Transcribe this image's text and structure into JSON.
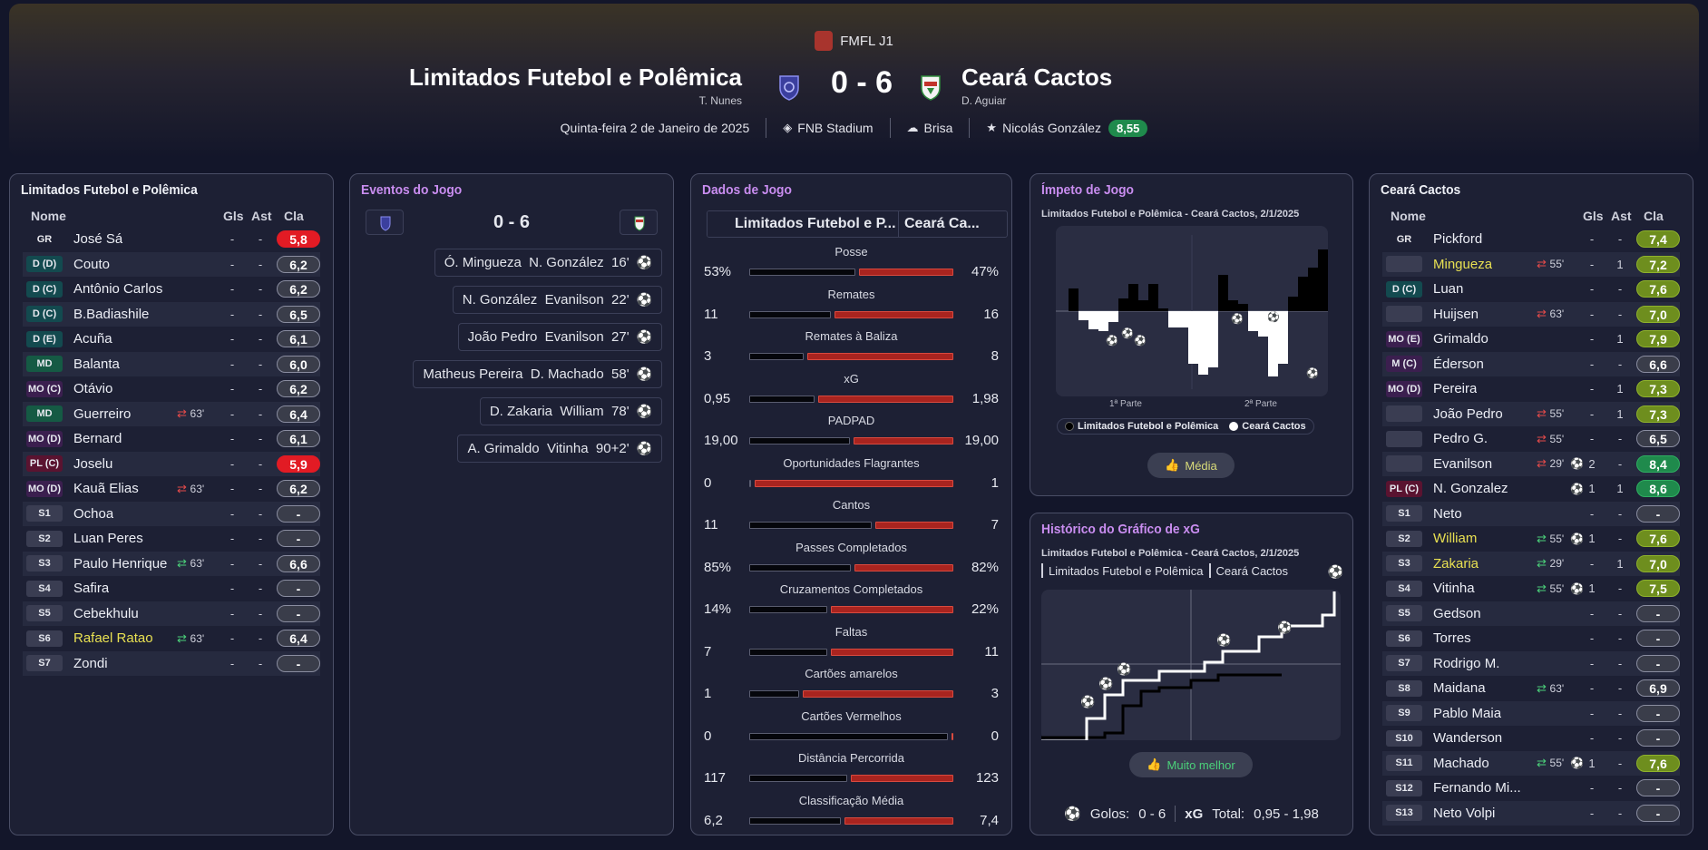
{
  "header": {
    "competition": "FMFL J1",
    "home_team": "Limitados Futebol e Polêmica",
    "home_coach": "T. Nunes",
    "away_team": "Ceará Cactos",
    "away_coach": "D. Aguiar",
    "score": "0 - 6",
    "date": "Quinta-feira 2 de Janeiro de 2025",
    "stadium": "FNB Stadium",
    "weather": "Brisa",
    "potm": "Nicolás González",
    "potm_rating": "8,55"
  },
  "home_panel": {
    "title": "Limitados Futebol e Polêmica",
    "columns": {
      "name": "Nome",
      "goals": "Gls",
      "assists": "Ast",
      "rating": "Cla"
    },
    "players": [
      {
        "pos": "GR",
        "name": "José Sá",
        "sub": "",
        "gls": "-",
        "ast": "-",
        "rating": "5,8",
        "rc": "red"
      },
      {
        "pos": "D (D)",
        "name": "Couto",
        "sub": "",
        "gls": "-",
        "ast": "-",
        "rating": "6,2",
        "rc": ""
      },
      {
        "pos": "D (C)",
        "name": "Antônio Carlos",
        "sub": "",
        "gls": "-",
        "ast": "-",
        "rating": "6,2",
        "rc": ""
      },
      {
        "pos": "D (C)",
        "name": "B.Badiashile",
        "sub": "",
        "gls": "-",
        "ast": "-",
        "rating": "6,5",
        "rc": ""
      },
      {
        "pos": "D (E)",
        "name": "Acuña",
        "sub": "",
        "gls": "-",
        "ast": "-",
        "rating": "6,1",
        "rc": ""
      },
      {
        "pos": "MD",
        "name": "Balanta",
        "sub": "",
        "gls": "-",
        "ast": "-",
        "rating": "6,0",
        "rc": ""
      },
      {
        "pos": "MO (C)",
        "name": "Otávio",
        "sub": "",
        "gls": "-",
        "ast": "-",
        "rating": "6,2",
        "rc": ""
      },
      {
        "pos": "MD",
        "name": "Guerreiro",
        "sub": "63'",
        "subdir": "out",
        "gls": "-",
        "ast": "-",
        "rating": "6,4",
        "rc": ""
      },
      {
        "pos": "MO (D)",
        "name": "Bernard",
        "sub": "",
        "gls": "-",
        "ast": "-",
        "rating": "6,1",
        "rc": ""
      },
      {
        "pos": "PL (C)",
        "name": "Joselu",
        "sub": "",
        "gls": "-",
        "ast": "-",
        "rating": "5,9",
        "rc": "red"
      },
      {
        "pos": "MO (D)",
        "name": "Kauã Elias",
        "sub": "63'",
        "subdir": "out",
        "gls": "-",
        "ast": "-",
        "rating": "6,2",
        "rc": ""
      },
      {
        "pos": "S1",
        "name": "Ochoa",
        "sub": "",
        "gls": "-",
        "ast": "-",
        "rating": "-",
        "rc": ""
      },
      {
        "pos": "S2",
        "name": "Luan Peres",
        "sub": "",
        "gls": "-",
        "ast": "-",
        "rating": "-",
        "rc": ""
      },
      {
        "pos": "S3",
        "name": "Paulo Henrique",
        "sub": "63'",
        "subdir": "in",
        "gls": "-",
        "ast": "-",
        "rating": "6,6",
        "rc": ""
      },
      {
        "pos": "S4",
        "name": "Safira",
        "sub": "",
        "gls": "-",
        "ast": "-",
        "rating": "-",
        "rc": ""
      },
      {
        "pos": "S5",
        "name": "Cebekhulu",
        "sub": "",
        "gls": "-",
        "ast": "-",
        "rating": "-",
        "rc": ""
      },
      {
        "pos": "S6",
        "name": "Rafael Ratao",
        "hl": true,
        "sub": "63'",
        "subdir": "in",
        "gls": "-",
        "ast": "-",
        "rating": "6,4",
        "rc": ""
      },
      {
        "pos": "S7",
        "name": "Zondi",
        "sub": "",
        "gls": "-",
        "ast": "-",
        "rating": "-",
        "rc": ""
      }
    ]
  },
  "events_panel": {
    "title": "Eventos do Jogo",
    "score": "0 - 6",
    "events": [
      {
        "text": "Ó. Mingueza  N. González  16'"
      },
      {
        "text": "N. González  Evanilson  22'"
      },
      {
        "text": "João Pedro  Evanilson  27'"
      },
      {
        "text": "Matheus Pereira  D. Machado  58'"
      },
      {
        "text": "D. Zakaria  William  78'"
      },
      {
        "text": "A. Grimaldo  Vitinha  90+2'"
      }
    ]
  },
  "stats_panel": {
    "title": "Dados de Jogo",
    "home_tab": "Limitados Futebol e P...",
    "away_tab": "Ceará Ca...",
    "stats": [
      {
        "label": "Posse",
        "home": "53%",
        "away": "47%",
        "hn": 53,
        "an": 47
      },
      {
        "label": "Remates",
        "home": "11",
        "away": "16",
        "hn": 11,
        "an": 16
      },
      {
        "label": "Remates à Baliza",
        "home": "3",
        "away": "8",
        "hn": 3,
        "an": 8
      },
      {
        "label": "xG",
        "home": "0,95",
        "away": "1,98",
        "hn": 0.95,
        "an": 1.98
      },
      {
        "label": "PADPAD",
        "home": "19,00",
        "away": "19,00",
        "hn": 19,
        "an": 19
      },
      {
        "label": "Oportunidades Flagrantes",
        "home": "0",
        "away": "1",
        "hn": 0,
        "an": 1
      },
      {
        "label": "Cantos",
        "home": "11",
        "away": "7",
        "hn": 11,
        "an": 7
      },
      {
        "label": "Passes Completados",
        "home": "85%",
        "away": "82%",
        "hn": 85,
        "an": 82
      },
      {
        "label": "Cruzamentos Completados",
        "home": "14%",
        "away": "22%",
        "hn": 14,
        "an": 22
      },
      {
        "label": "Faltas",
        "home": "7",
        "away": "11",
        "hn": 7,
        "an": 11
      },
      {
        "label": "Cartões amarelos",
        "home": "1",
        "away": "3",
        "hn": 1,
        "an": 3
      },
      {
        "label": "Cartões Vermelhos",
        "home": "0",
        "away": "0",
        "hn": 0,
        "an": 0
      },
      {
        "label": "Distância Percorrida",
        "home": "117",
        "away": "123",
        "hn": 117,
        "an": 123
      },
      {
        "label": "Classificação Média",
        "home": "6,2",
        "away": "7,4",
        "hn": 6.2,
        "an": 7.4
      }
    ]
  },
  "momentum_panel": {
    "title": "Ímpeto de Jogo",
    "subtitle": "Limitados Futebol e Polêmica - Ceará Cactos, 2/1/2025",
    "first_half": "1ª Parte",
    "second_half": "2ª Parte",
    "legend_home": "Limitados Futebol e Polêmica",
    "legend_away": "Ceará Cactos",
    "button": "Média",
    "goal_badge": "1"
  },
  "xg_panel": {
    "title": "Histórico do Gráfico de xG",
    "subtitle": "Limitados Futebol e Polêmica - Ceará Cactos, 2/1/2025",
    "tab_home": "Limitados Futebol e Polêmica",
    "tab_away": "Ceará Cactos",
    "button": "Muito melhor",
    "goals_label": "Golos:",
    "goals_value": "0 - 6",
    "xg_label": "xG",
    "total_label": "Total:",
    "total_value": "0,95  - 1,98"
  },
  "away_panel": {
    "title": "Ceará Cactos",
    "columns": {
      "name": "Nome",
      "goals": "Gls",
      "assists": "Ast",
      "rating": "Cla"
    },
    "players": [
      {
        "pos": "GR",
        "name": "Pickford",
        "sub": "",
        "gls": "-",
        "ast": "-",
        "rating": "7,4",
        "rc": "lime"
      },
      {
        "pos": "",
        "name": "Mingueza",
        "hl": true,
        "sub": "55'",
        "subdir": "out",
        "gls": "-",
        "ast": "1",
        "rating": "7,2",
        "rc": "lime"
      },
      {
        "pos": "D (C)",
        "name": "Luan",
        "sub": "",
        "gls": "-",
        "ast": "-",
        "rating": "7,6",
        "rc": "lime"
      },
      {
        "pos": "",
        "name": "Huijsen",
        "sub": "63'",
        "subdir": "out",
        "gls": "-",
        "ast": "-",
        "rating": "7,0",
        "rc": "lime"
      },
      {
        "pos": "MO (E)",
        "name": "Grimaldo",
        "sub": "",
        "gls": "-",
        "ast": "1",
        "rating": "7,9",
        "rc": "lime"
      },
      {
        "pos": "M (C)",
        "name": "Éderson",
        "sub": "",
        "gls": "-",
        "ast": "-",
        "rating": "6,6",
        "rc": ""
      },
      {
        "pos": "MO (D)",
        "name": "Pereira",
        "sub": "",
        "gls": "-",
        "ast": "1",
        "rating": "7,3",
        "rc": "lime"
      },
      {
        "pos": "",
        "name": "João Pedro",
        "sub": "55'",
        "subdir": "out",
        "gls": "-",
        "ast": "1",
        "rating": "7,3",
        "rc": "lime"
      },
      {
        "pos": "",
        "name": "Pedro G.",
        "sub": "55'",
        "subdir": "out",
        "gls": "-",
        "ast": "-",
        "rating": "6,5",
        "rc": ""
      },
      {
        "pos": "",
        "name": "Evanilson",
        "sub": "29'",
        "subdir": "out",
        "gls": "2",
        "goal": true,
        "ast": "-",
        "rating": "8,4",
        "rc": "green"
      },
      {
        "pos": "PL (C)",
        "name": "N. Gonzalez",
        "sub": "",
        "gls": "1",
        "goal": true,
        "ast": "1",
        "rating": "8,6",
        "rc": "green"
      },
      {
        "pos": "S1",
        "name": "Neto",
        "sub": "",
        "gls": "-",
        "ast": "-",
        "rating": "-",
        "rc": ""
      },
      {
        "pos": "S2",
        "name": "William",
        "hl": true,
        "sub": "55'",
        "subdir": "in",
        "gls": "1",
        "goal": true,
        "ast": "-",
        "rating": "7,6",
        "rc": "lime"
      },
      {
        "pos": "S3",
        "name": "Zakaria",
        "hl": true,
        "sub": "29'",
        "subdir": "in",
        "gls": "-",
        "ast": "1",
        "rating": "7,0",
        "rc": "lime"
      },
      {
        "pos": "S4",
        "name": "Vitinha",
        "sub": "55'",
        "subdir": "in",
        "gls": "1",
        "goal": true,
        "ast": "-",
        "rating": "7,5",
        "rc": "lime"
      },
      {
        "pos": "S5",
        "name": "Gedson",
        "sub": "",
        "gls": "-",
        "ast": "-",
        "rating": "-",
        "rc": ""
      },
      {
        "pos": "S6",
        "name": "Torres",
        "sub": "",
        "gls": "-",
        "ast": "-",
        "rating": "-",
        "rc": ""
      },
      {
        "pos": "S7",
        "name": "Rodrigo M.",
        "sub": "",
        "gls": "-",
        "ast": "-",
        "rating": "-",
        "rc": ""
      },
      {
        "pos": "S8",
        "name": "Maidana",
        "sub": "63'",
        "subdir": "in",
        "gls": "-",
        "ast": "-",
        "rating": "6,9",
        "rc": ""
      },
      {
        "pos": "S9",
        "name": "Pablo Maia",
        "sub": "",
        "gls": "-",
        "ast": "-",
        "rating": "-",
        "rc": ""
      },
      {
        "pos": "S10",
        "name": "Wanderson",
        "sub": "",
        "gls": "-",
        "ast": "-",
        "rating": "-",
        "rc": ""
      },
      {
        "pos": "S11",
        "name": "Machado",
        "sub": "55'",
        "subdir": "in",
        "gls": "1",
        "goal": true,
        "ast": "-",
        "rating": "7,6",
        "rc": "lime"
      },
      {
        "pos": "S12",
        "name": "Fernando Mi...",
        "sub": "",
        "gls": "-",
        "ast": "-",
        "rating": "-",
        "rc": ""
      },
      {
        "pos": "S13",
        "name": "Neto Volpi",
        "sub": "",
        "gls": "-",
        "ast": "-",
        "rating": "-",
        "rc": ""
      }
    ]
  },
  "colors": {
    "home_bar": "#05060b",
    "away_bar": "#a9241f",
    "rating_red": "#e21b24",
    "rating_lime": "#6e8e1e",
    "rating_green": "#1f8a4c",
    "highlight_name": "#e8e052",
    "panel_title_purple": "#c98df0"
  }
}
